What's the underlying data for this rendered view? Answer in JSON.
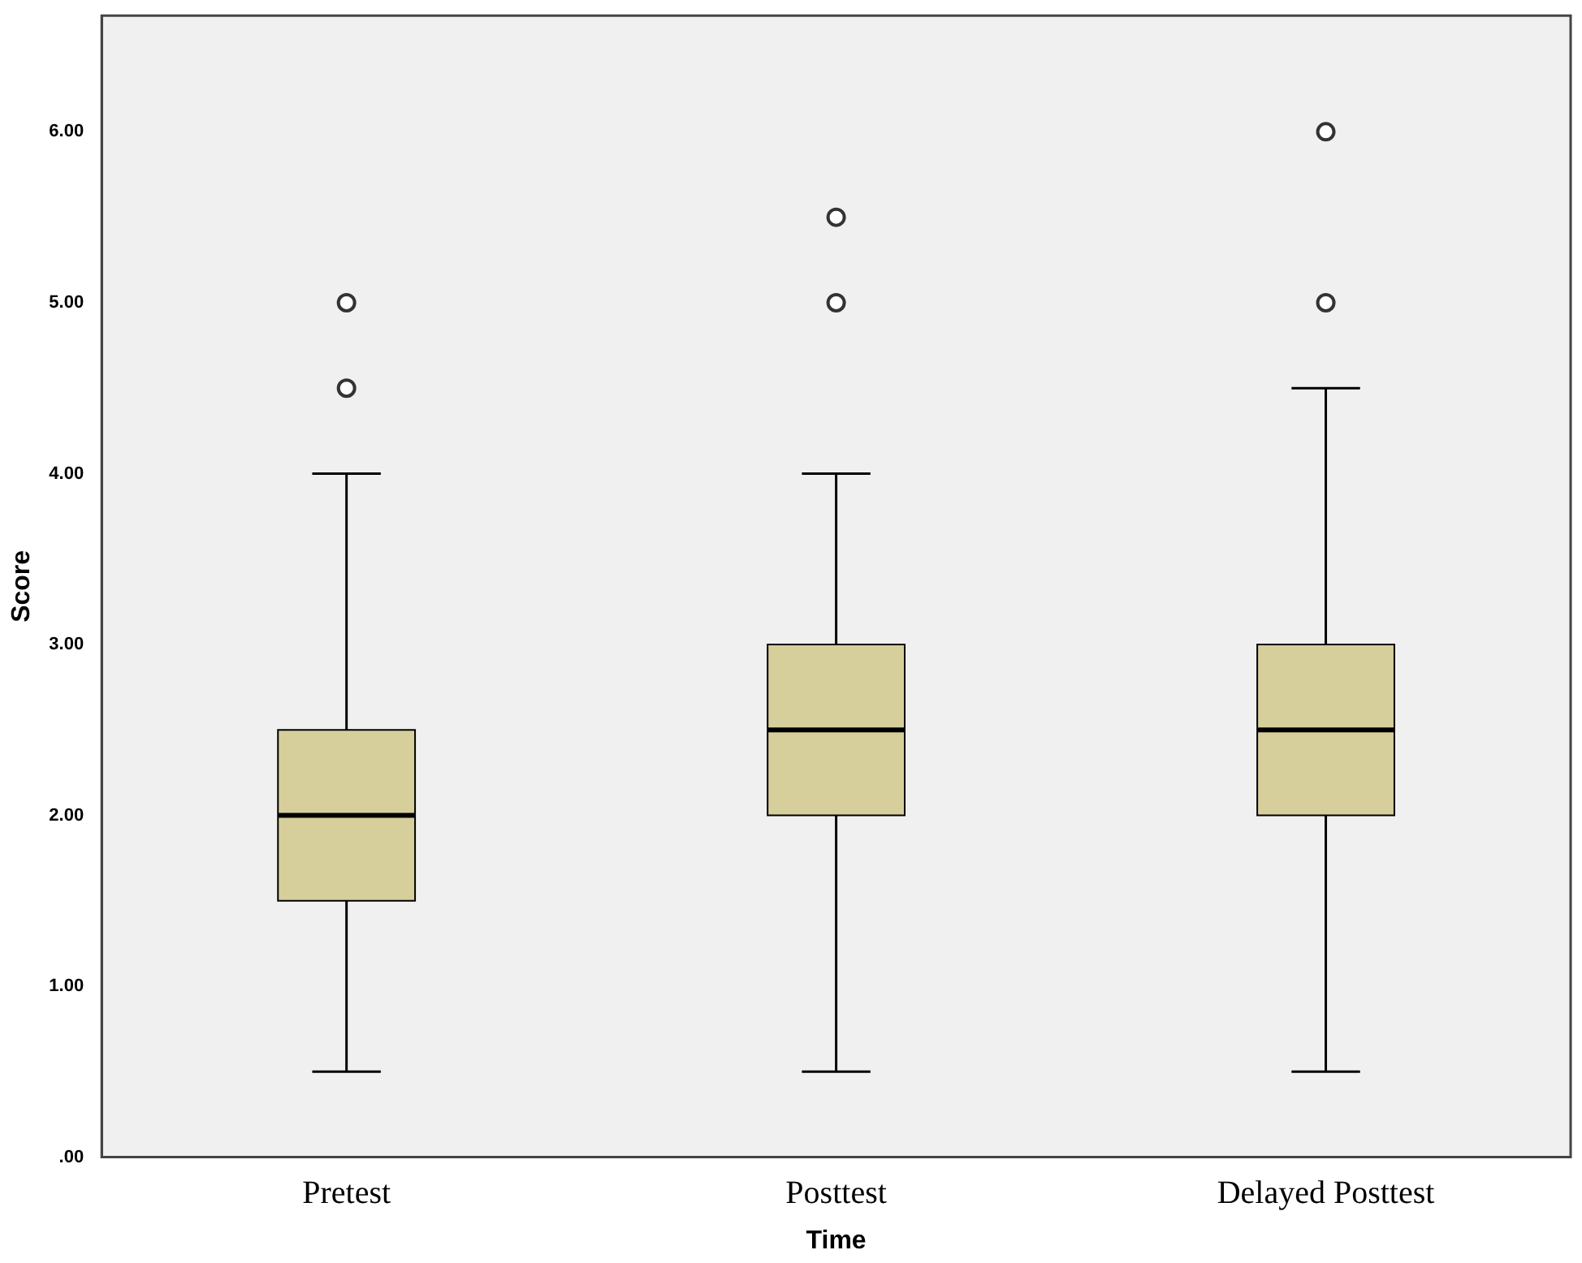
{
  "chart_data": {
    "type": "box",
    "xlabel": "Time",
    "ylabel": "Score",
    "categories": [
      "Pretest",
      "Posttest",
      "Delayed Posttest"
    ],
    "color": "#d6cf9b",
    "boxes": [
      {
        "low": 0.5,
        "q1": 1.5,
        "median": 2,
        "q3": 2.5,
        "high": 4,
        "outliers": [
          4.5,
          5
        ]
      },
      {
        "low": 0.5,
        "q1": 2,
        "median": 2.5,
        "q3": 3,
        "high": 4,
        "outliers": [
          5,
          5.5
        ]
      },
      {
        "low": 0.5,
        "q1": 2,
        "median": 2.5,
        "q3": 3,
        "high": 4.5,
        "outliers": [
          5,
          6
        ]
      }
    ],
    "ylim": [
      0,
      6.68
    ],
    "yticks": [
      {
        "value": 0,
        "label": ".00"
      },
      {
        "value": 1,
        "label": "1.00"
      },
      {
        "value": 2,
        "label": "2.00"
      },
      {
        "value": 3,
        "label": "3.00"
      },
      {
        "value": 4,
        "label": "4.00"
      },
      {
        "value": 5,
        "label": "5.00"
      },
      {
        "value": 6,
        "label": "6.00"
      }
    ],
    "marker": "circle",
    "grid": false,
    "legend": false
  }
}
